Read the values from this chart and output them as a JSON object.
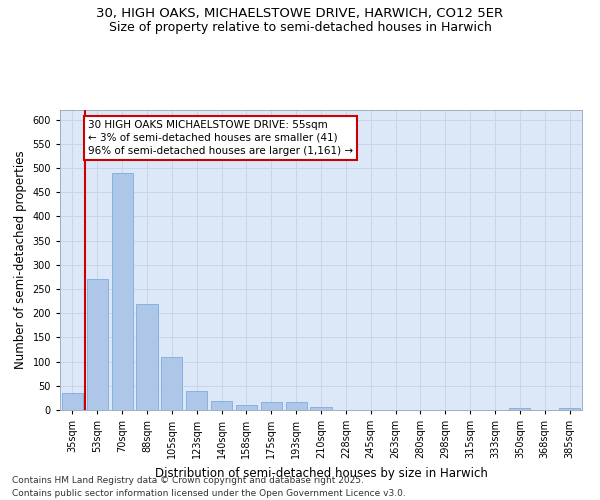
{
  "title_line1": "30, HIGH OAKS, MICHAELSTOWE DRIVE, HARWICH, CO12 5ER",
  "title_line2": "Size of property relative to semi-detached houses in Harwich",
  "xlabel": "Distribution of semi-detached houses by size in Harwich",
  "ylabel": "Number of semi-detached properties",
  "categories": [
    "35sqm",
    "53sqm",
    "70sqm",
    "88sqm",
    "105sqm",
    "123sqm",
    "140sqm",
    "158sqm",
    "175sqm",
    "193sqm",
    "210sqm",
    "228sqm",
    "245sqm",
    "263sqm",
    "280sqm",
    "298sqm",
    "315sqm",
    "333sqm",
    "350sqm",
    "368sqm",
    "385sqm"
  ],
  "values": [
    35,
    270,
    490,
    220,
    110,
    40,
    18,
    10,
    16,
    16,
    6,
    0,
    0,
    0,
    0,
    0,
    0,
    0,
    4,
    0,
    5
  ],
  "bar_color": "#aec6e8",
  "bar_edge_color": "#7aade0",
  "marker_line_color": "#cc0000",
  "marker_label": "30 HIGH OAKS MICHAELSTOWE DRIVE: 55sqm\n← 3% of semi-detached houses are smaller (41)\n96% of semi-detached houses are larger (1,161) →",
  "annotation_box_color": "#ffffff",
  "annotation_box_edge_color": "#cc0000",
  "ylim": [
    0,
    620
  ],
  "yticks": [
    0,
    50,
    100,
    150,
    200,
    250,
    300,
    350,
    400,
    450,
    500,
    550,
    600
  ],
  "grid_color": "#c8d4e8",
  "background_color": "#dce8f8",
  "footer_line1": "Contains HM Land Registry data © Crown copyright and database right 2025.",
  "footer_line2": "Contains public sector information licensed under the Open Government Licence v3.0.",
  "title_fontsize": 9.5,
  "subtitle_fontsize": 9,
  "axis_label_fontsize": 8.5,
  "tick_fontsize": 7,
  "footer_fontsize": 6.5,
  "annotation_fontsize": 7.5
}
